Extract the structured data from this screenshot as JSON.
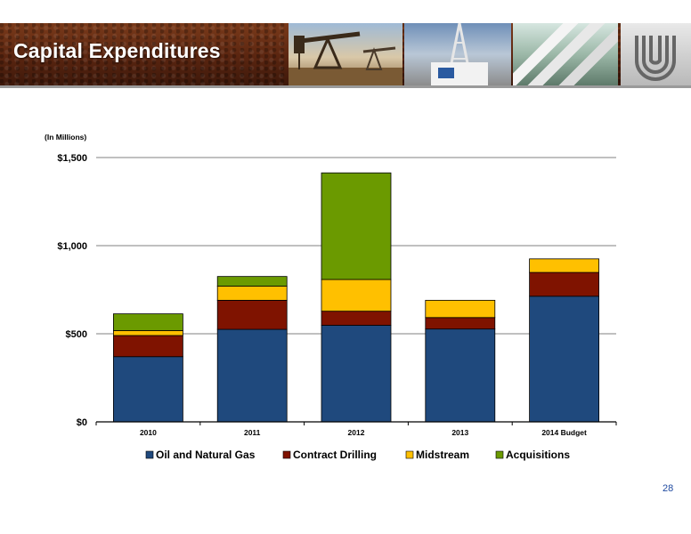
{
  "header": {
    "title": "Capital Expenditures",
    "accent_color": "#5a2510"
  },
  "icons": [
    "oil-pumpjack-photo-icon",
    "drilling-rig-photo-icon",
    "pipeline-photo-icon",
    "company-logo-icon"
  ],
  "page_number": "28",
  "chart_data": {
    "type": "bar",
    "stacked": true,
    "unit_label": "(In Millions)",
    "categories": [
      "2010",
      "2011",
      "2012",
      "2013",
      "2014 Budget"
    ],
    "series": [
      {
        "name": "Oil and Natural Gas",
        "color": "#1f497d",
        "values": [
          370,
          525,
          548,
          527,
          713
        ]
      },
      {
        "name": "Contract Drilling",
        "color": "#7f1300",
        "values": [
          120,
          165,
          80,
          65,
          135
        ]
      },
      {
        "name": "Midstream",
        "color": "#ffc000",
        "values": [
          28,
          80,
          180,
          98,
          77
        ]
      },
      {
        "name": "Acquisitions",
        "color": "#6b9a00",
        "values": [
          95,
          55,
          605,
          0,
          0
        ]
      }
    ],
    "ylim": [
      0,
      1500
    ],
    "yticks": [
      0,
      500,
      1000,
      1500
    ],
    "ytick_labels": [
      "$0",
      "$500",
      "$1,000",
      "$1,500"
    ],
    "grid": true,
    "legend_position": "bottom"
  }
}
